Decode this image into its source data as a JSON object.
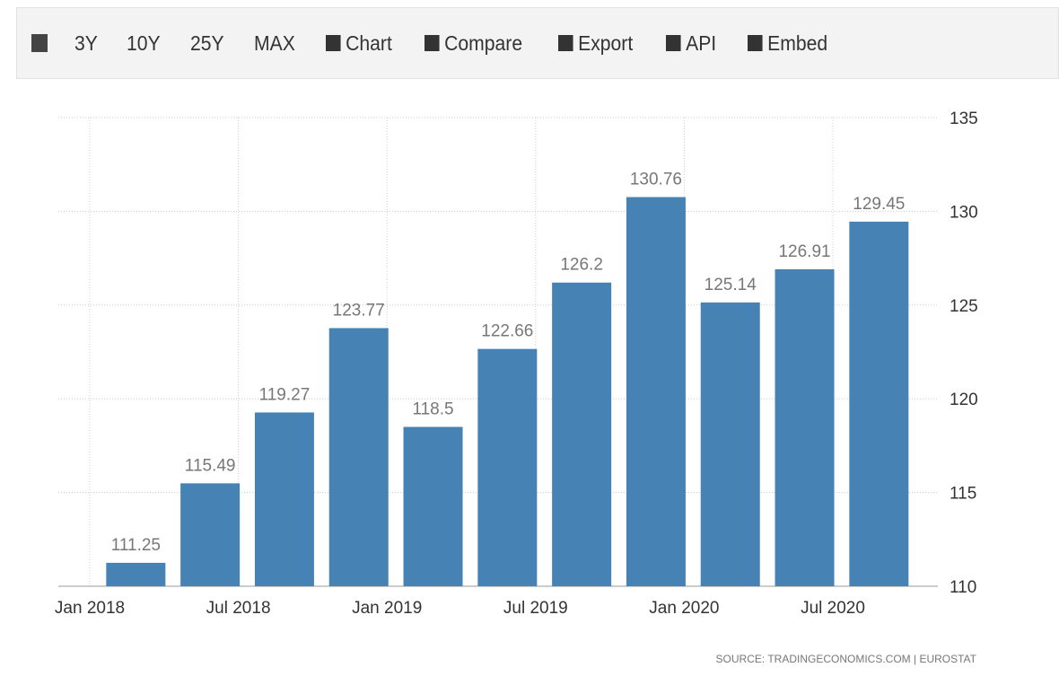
{
  "toolbar": {
    "items": [
      "3Y",
      "10Y",
      "25Y",
      "MAX",
      "Chart",
      "Compare",
      "Export",
      "API",
      "Embed"
    ]
  },
  "chart_data": {
    "type": "bar",
    "categories": [
      null,
      null,
      null,
      null,
      null,
      null,
      null,
      null,
      null,
      null,
      null
    ],
    "values": [
      111.25,
      115.49,
      119.27,
      123.77,
      118.5,
      122.66,
      126.2,
      130.76,
      125.14,
      126.91,
      129.45
    ],
    "color": "#4682b4",
    "xticks": [
      "Jan 2018",
      "Jul 2018",
      "Jan 2019",
      "Jul 2019",
      "Jan 2020",
      "Jul 2020"
    ],
    "ylim": [
      110,
      135
    ],
    "yticks": [
      110,
      115,
      120,
      125,
      130,
      135
    ],
    "grid": true,
    "source": "SOURCE: TRADINGECONOMICS.COM | EUROSTAT"
  }
}
